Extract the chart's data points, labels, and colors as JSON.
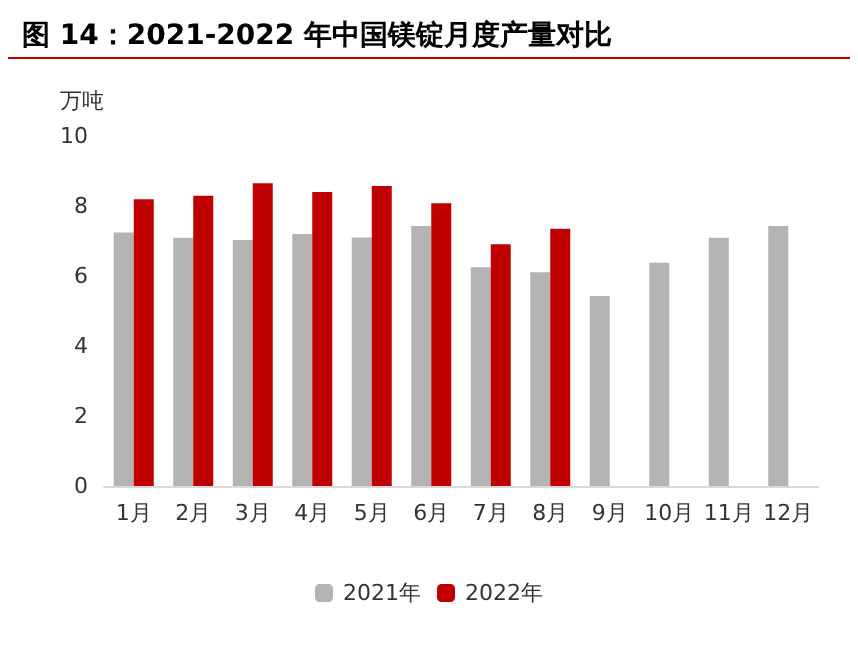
{
  "chart_data": {
    "type": "bar",
    "title": "图 14：2021-2022 年中国镁锭月度产量对比",
    "ylabel": "万吨",
    "categories": [
      "1月",
      "2月",
      "3月",
      "4月",
      "5月",
      "6月",
      "7月",
      "8月",
      "9月",
      "10月",
      "11月",
      "12月"
    ],
    "series": [
      {
        "name": "2021年",
        "color": "#b3b3b3",
        "values": [
          7.24,
          7.09,
          7.03,
          7.2,
          7.1,
          7.43,
          6.25,
          6.11,
          5.43,
          6.38,
          7.09,
          7.43
        ]
      },
      {
        "name": "2022年",
        "color": "#c00000",
        "values": [
          8.19,
          8.29,
          8.65,
          8.4,
          8.57,
          8.08,
          6.91,
          7.35,
          null,
          null,
          null,
          null
        ]
      }
    ],
    "ylim": [
      0,
      10
    ],
    "yticks": [
      0,
      2,
      4,
      6,
      8,
      10
    ],
    "grid": false,
    "legend": "bottom"
  }
}
